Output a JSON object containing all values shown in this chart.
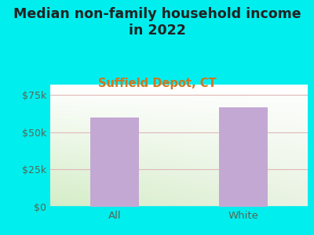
{
  "title": "Median non-family household income\nin 2022",
  "subtitle": "Suffield Depot, CT",
  "categories": [
    "All",
    "White"
  ],
  "values": [
    60000,
    67000
  ],
  "bar_color": "#c4a8d4",
  "background_color": "#00EEEE",
  "plot_bg_color_tl": "#e8f4e0",
  "plot_bg_color_tr": "#f0f8f8",
  "plot_bg_color_bl": "#d8eec8",
  "plot_bg_color_br": "#e8f8f0",
  "title_color": "#222222",
  "subtitle_color": "#cc7722",
  "tick_label_color": "#556655",
  "yticks": [
    0,
    25000,
    50000,
    75000
  ],
  "ytick_labels": [
    "$0",
    "$25k",
    "$50k",
    "$75k"
  ],
  "ylim": [
    0,
    82000
  ],
  "grid_color": "#e0b8b8",
  "title_fontsize": 12.5,
  "subtitle_fontsize": 10.5,
  "bar_width": 0.38
}
